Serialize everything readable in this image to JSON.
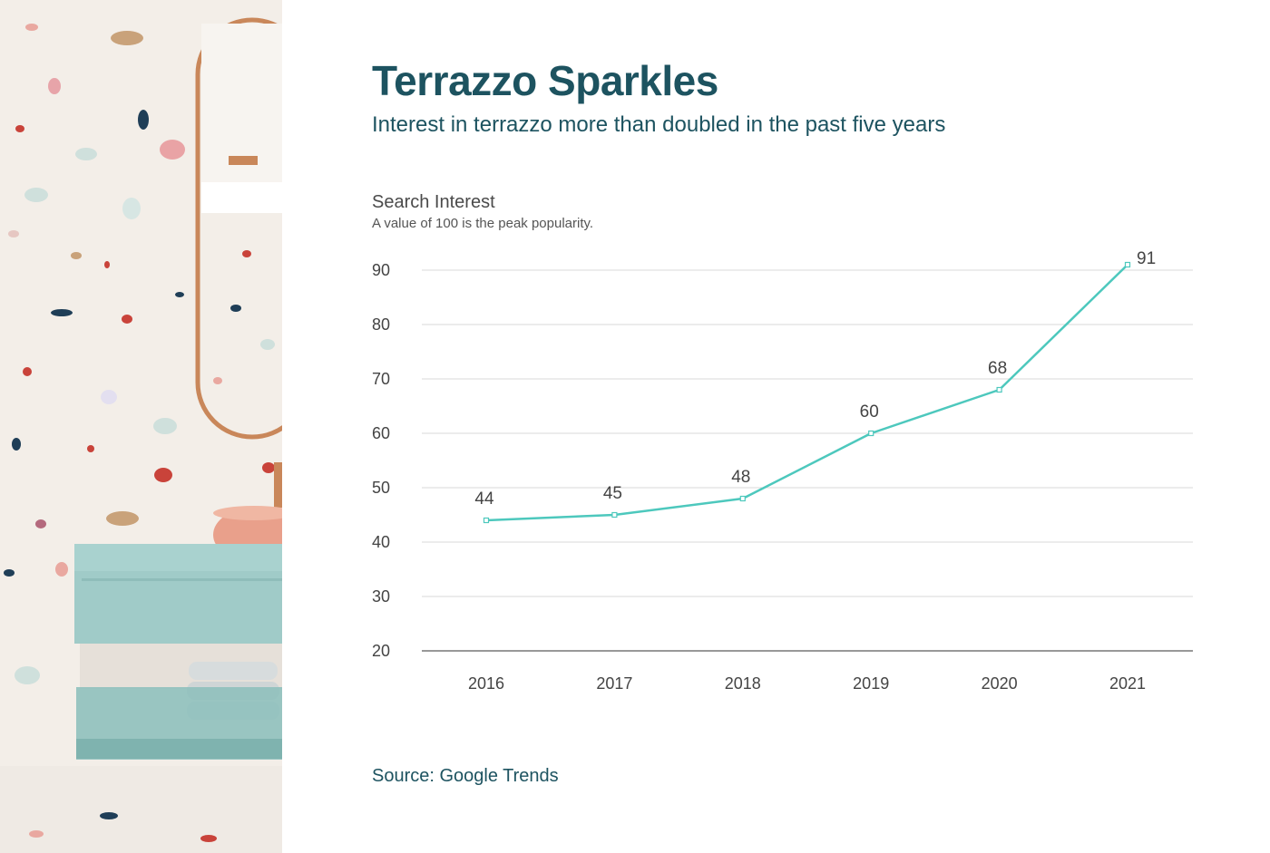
{
  "title": "Terrazzo Sparkles",
  "subtitle": "Interest in terrazzo more than doubled in the past five years",
  "chart_label": "Search Interest",
  "chart_note": "A value of 100 is the peak popularity.",
  "source": "Source: Google Trends",
  "colors": {
    "title": "#1d5360",
    "line": "#4dc8bd",
    "grid": "#d9d9d9",
    "axis": "#777777"
  },
  "chart_data": {
    "type": "line",
    "title": "Terrazzo Sparkles",
    "subtitle": "Interest in terrazzo more than doubled in the past five years",
    "ylabel": "Search Interest",
    "x": [
      "2016",
      "2017",
      "2018",
      "2019",
      "2020",
      "2021"
    ],
    "series": [
      {
        "values": [
          44,
          45,
          48,
          60,
          68,
          91
        ]
      }
    ],
    "ylim": [
      20,
      90
    ],
    "yticks": [
      20,
      30,
      40,
      50,
      60,
      70,
      80,
      90
    ],
    "grid": true,
    "data_labels": true
  }
}
